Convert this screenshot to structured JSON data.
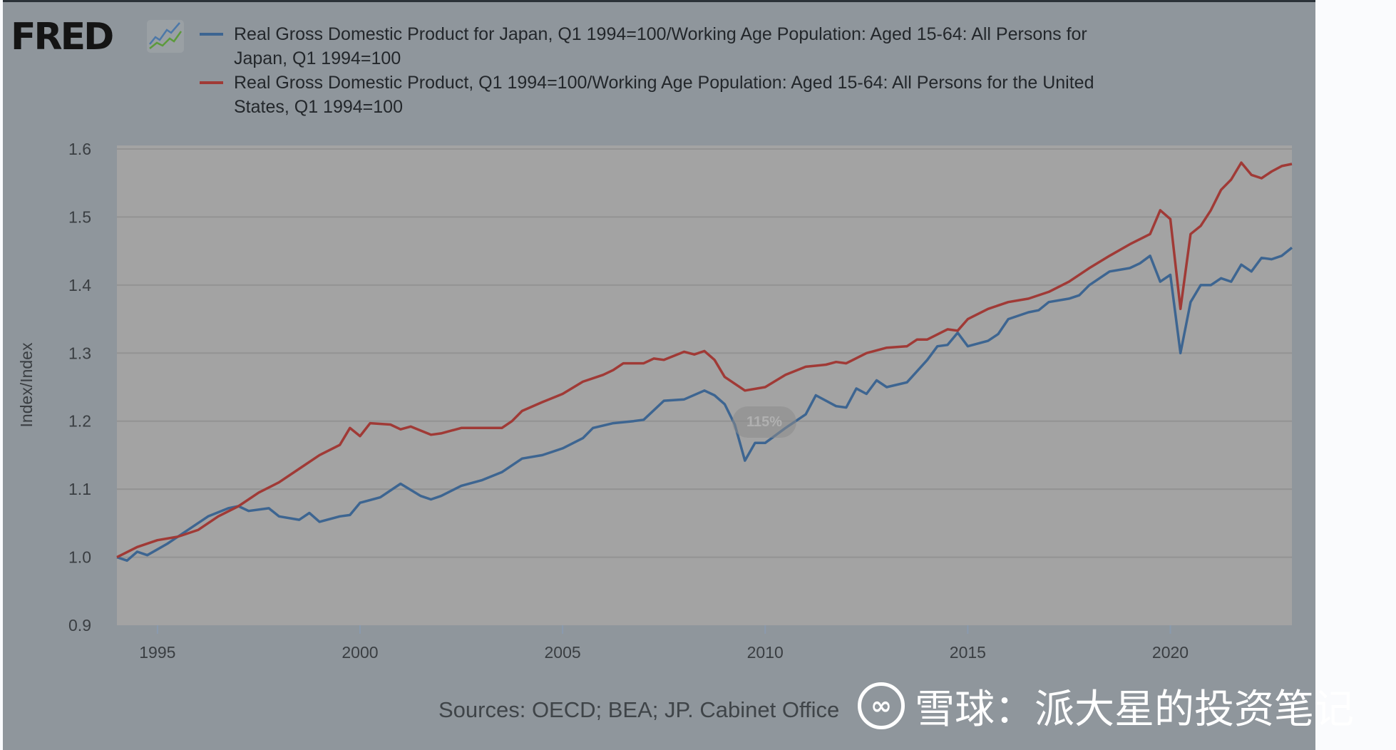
{
  "logo": {
    "text": "FRED",
    "icon": "chart-line-icon"
  },
  "legend": [
    {
      "line1": "Real Gross Domestic Product for Japan, Q1 1994=100/Working Age Population: Aged 15-64: All Persons for",
      "line2": "Japan, Q1 1994=100",
      "color": "#3d6591"
    },
    {
      "line1": "Real Gross Domestic Product, Q1 1994=100/Working Age Population: Aged 15-64: All Persons for the United",
      "line2": "States, Q1 1994=100",
      "color": "#a03a36"
    }
  ],
  "sources": "Sources: OECD; BEA; JP. Cabinet Office",
  "zoom_badge": "115%",
  "watermark": {
    "icon": "xueqiu-logo-icon",
    "text": "雪球：派大星的投资笔记"
  },
  "chart_data": {
    "type": "line",
    "ylabel": "Index/Index",
    "ylim": [
      0.9,
      1.6
    ],
    "yticks": [
      "0.9",
      "1.0",
      "1.1",
      "1.2",
      "1.3",
      "1.4",
      "1.5",
      "1.6"
    ],
    "xlim": [
      "1994-01-01",
      "2023-01-01"
    ],
    "xticks": [
      "1995",
      "2000",
      "2005",
      "2010",
      "2015",
      "2020"
    ],
    "grid": true,
    "legend_position": "top",
    "series": [
      {
        "name": "Real Gross Domestic Product for Japan, Q1 1994=100/Working Age Population: Aged 15-64: All Persons for Japan, Q1 1994=100",
        "color": "#3d6591",
        "points": [
          [
            "1994-01-01",
            1.0
          ],
          [
            "1994-04-01",
            0.995
          ],
          [
            "1994-07-01",
            1.008
          ],
          [
            "1994-10-01",
            1.003
          ],
          [
            "1995-04-01",
            1.02
          ],
          [
            "1995-10-01",
            1.04
          ],
          [
            "1996-04-01",
            1.06
          ],
          [
            "1996-10-01",
            1.072
          ],
          [
            "1997-01-01",
            1.075
          ],
          [
            "1997-04-01",
            1.068
          ],
          [
            "1997-10-01",
            1.072
          ],
          [
            "1998-01-01",
            1.06
          ],
          [
            "1998-07-01",
            1.055
          ],
          [
            "1998-10-01",
            1.065
          ],
          [
            "1999-01-01",
            1.052
          ],
          [
            "1999-07-01",
            1.06
          ],
          [
            "1999-10-01",
            1.062
          ],
          [
            "2000-01-01",
            1.08
          ],
          [
            "2000-07-01",
            1.088
          ],
          [
            "2001-01-01",
            1.108
          ],
          [
            "2001-07-01",
            1.09
          ],
          [
            "2001-10-01",
            1.085
          ],
          [
            "2002-01-01",
            1.09
          ],
          [
            "2002-07-01",
            1.105
          ],
          [
            "2003-01-01",
            1.113
          ],
          [
            "2003-07-01",
            1.125
          ],
          [
            "2004-01-01",
            1.145
          ],
          [
            "2004-07-01",
            1.15
          ],
          [
            "2005-01-01",
            1.16
          ],
          [
            "2005-07-01",
            1.175
          ],
          [
            "2005-10-01",
            1.19
          ],
          [
            "2006-04-01",
            1.197
          ],
          [
            "2006-10-01",
            1.2
          ],
          [
            "2007-01-01",
            1.202
          ],
          [
            "2007-07-01",
            1.23
          ],
          [
            "2008-01-01",
            1.232
          ],
          [
            "2008-07-01",
            1.245
          ],
          [
            "2008-10-01",
            1.238
          ],
          [
            "2009-01-01",
            1.225
          ],
          [
            "2009-04-01",
            1.195
          ],
          [
            "2009-07-01",
            1.142
          ],
          [
            "2009-10-01",
            1.168
          ],
          [
            "2010-01-01",
            1.168
          ],
          [
            "2010-07-01",
            1.19
          ],
          [
            "2011-01-01",
            1.21
          ],
          [
            "2011-04-01",
            1.238
          ],
          [
            "2011-10-01",
            1.222
          ],
          [
            "2012-01-01",
            1.22
          ],
          [
            "2012-04-01",
            1.248
          ],
          [
            "2012-07-01",
            1.24
          ],
          [
            "2012-10-01",
            1.26
          ],
          [
            "2013-01-01",
            1.25
          ],
          [
            "2013-07-01",
            1.257
          ],
          [
            "2014-01-01",
            1.29
          ],
          [
            "2014-04-01",
            1.31
          ],
          [
            "2014-07-01",
            1.312
          ],
          [
            "2014-10-01",
            1.33
          ],
          [
            "2015-01-01",
            1.31
          ],
          [
            "2015-07-01",
            1.318
          ],
          [
            "2015-10-01",
            1.328
          ],
          [
            "2016-01-01",
            1.35
          ],
          [
            "2016-07-01",
            1.36
          ],
          [
            "2016-10-01",
            1.363
          ],
          [
            "2017-01-01",
            1.375
          ],
          [
            "2017-07-01",
            1.38
          ],
          [
            "2017-10-01",
            1.385
          ],
          [
            "2018-01-01",
            1.4
          ],
          [
            "2018-07-01",
            1.42
          ],
          [
            "2019-01-01",
            1.425
          ],
          [
            "2019-04-01",
            1.432
          ],
          [
            "2019-07-01",
            1.443
          ],
          [
            "2019-10-01",
            1.405
          ],
          [
            "2020-01-01",
            1.415
          ],
          [
            "2020-04-01",
            1.3
          ],
          [
            "2020-07-01",
            1.375
          ],
          [
            "2020-10-01",
            1.4
          ],
          [
            "2021-01-01",
            1.4
          ],
          [
            "2021-04-01",
            1.41
          ],
          [
            "2021-07-01",
            1.405
          ],
          [
            "2021-10-01",
            1.43
          ],
          [
            "2022-01-01",
            1.42
          ],
          [
            "2022-04-01",
            1.44
          ],
          [
            "2022-07-01",
            1.438
          ],
          [
            "2022-10-01",
            1.443
          ],
          [
            "2023-01-01",
            1.455
          ]
        ]
      },
      {
        "name": "Real Gross Domestic Product, Q1 1994=100/Working Age Population: Aged 15-64: All Persons for the United States, Q1 1994=100",
        "color": "#a03a36",
        "points": [
          [
            "1994-01-01",
            1.0
          ],
          [
            "1994-07-01",
            1.015
          ],
          [
            "1995-01-01",
            1.025
          ],
          [
            "1995-07-01",
            1.03
          ],
          [
            "1996-01-01",
            1.04
          ],
          [
            "1996-07-01",
            1.06
          ],
          [
            "1997-01-01",
            1.075
          ],
          [
            "1997-07-01",
            1.095
          ],
          [
            "1998-01-01",
            1.11
          ],
          [
            "1998-07-01",
            1.13
          ],
          [
            "1999-01-01",
            1.15
          ],
          [
            "1999-07-01",
            1.165
          ],
          [
            "1999-10-01",
            1.19
          ],
          [
            "2000-01-01",
            1.178
          ],
          [
            "2000-04-01",
            1.197
          ],
          [
            "2000-10-01",
            1.195
          ],
          [
            "2001-01-01",
            1.188
          ],
          [
            "2001-04-01",
            1.192
          ],
          [
            "2001-10-01",
            1.18
          ],
          [
            "2002-01-01",
            1.182
          ],
          [
            "2002-07-01",
            1.19
          ],
          [
            "2003-01-01",
            1.19
          ],
          [
            "2003-07-01",
            1.19
          ],
          [
            "2003-10-01",
            1.2
          ],
          [
            "2004-01-01",
            1.215
          ],
          [
            "2004-07-01",
            1.228
          ],
          [
            "2005-01-01",
            1.24
          ],
          [
            "2005-07-01",
            1.258
          ],
          [
            "2006-01-01",
            1.268
          ],
          [
            "2006-04-01",
            1.275
          ],
          [
            "2006-07-01",
            1.285
          ],
          [
            "2007-01-01",
            1.285
          ],
          [
            "2007-04-01",
            1.292
          ],
          [
            "2007-07-01",
            1.29
          ],
          [
            "2008-01-01",
            1.302
          ],
          [
            "2008-04-01",
            1.298
          ],
          [
            "2008-07-01",
            1.303
          ],
          [
            "2008-10-01",
            1.29
          ],
          [
            "2009-01-01",
            1.265
          ],
          [
            "2009-07-01",
            1.245
          ],
          [
            "2010-01-01",
            1.25
          ],
          [
            "2010-07-01",
            1.268
          ],
          [
            "2011-01-01",
            1.28
          ],
          [
            "2011-07-01",
            1.283
          ],
          [
            "2011-10-01",
            1.287
          ],
          [
            "2012-01-01",
            1.285
          ],
          [
            "2012-07-01",
            1.3
          ],
          [
            "2013-01-01",
            1.308
          ],
          [
            "2013-07-01",
            1.31
          ],
          [
            "2013-10-01",
            1.32
          ],
          [
            "2014-01-01",
            1.32
          ],
          [
            "2014-07-01",
            1.335
          ],
          [
            "2014-10-01",
            1.333
          ],
          [
            "2015-01-01",
            1.35
          ],
          [
            "2015-07-01",
            1.365
          ],
          [
            "2016-01-01",
            1.375
          ],
          [
            "2016-07-01",
            1.38
          ],
          [
            "2017-01-01",
            1.39
          ],
          [
            "2017-07-01",
            1.405
          ],
          [
            "2018-01-01",
            1.425
          ],
          [
            "2018-07-01",
            1.443
          ],
          [
            "2019-01-01",
            1.46
          ],
          [
            "2019-07-01",
            1.475
          ],
          [
            "2019-10-01",
            1.51
          ],
          [
            "2020-01-01",
            1.497
          ],
          [
            "2020-04-01",
            1.365
          ],
          [
            "2020-07-01",
            1.475
          ],
          [
            "2020-10-01",
            1.487
          ],
          [
            "2021-01-01",
            1.51
          ],
          [
            "2021-04-01",
            1.54
          ],
          [
            "2021-07-01",
            1.555
          ],
          [
            "2021-10-01",
            1.58
          ],
          [
            "2022-01-01",
            1.562
          ],
          [
            "2022-04-01",
            1.557
          ],
          [
            "2022-07-01",
            1.567
          ],
          [
            "2022-10-01",
            1.575
          ],
          [
            "2023-01-01",
            1.578
          ]
        ]
      }
    ]
  }
}
